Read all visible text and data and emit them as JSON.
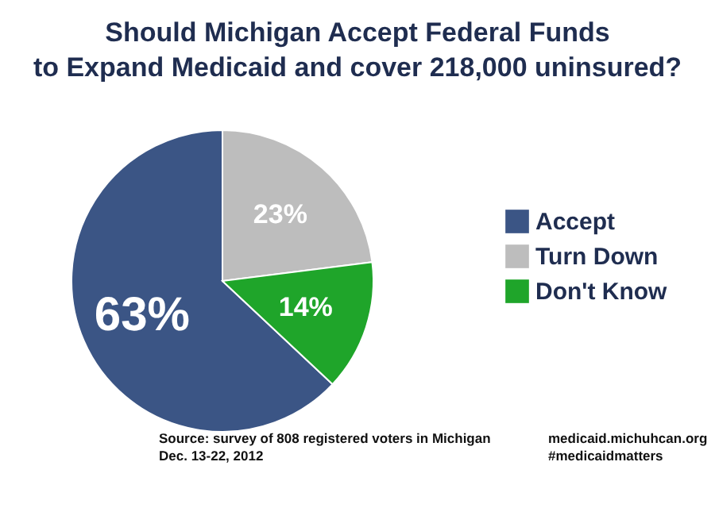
{
  "chart_data": {
    "type": "pie",
    "title": "Should Michigan Accept Federal Funds\nto Expand Medicaid and cover 218,000 uninsured?",
    "categories": [
      "Accept",
      "Turn Down",
      "Don't Know"
    ],
    "values": [
      63,
      23,
      14
    ],
    "colors": [
      "#3b5585",
      "#bdbdbd",
      "#1fa52a"
    ],
    "value_labels": [
      "63%",
      "23%",
      "14%"
    ],
    "legend": "right",
    "annotations": [
      "Source: survey of 808 registered voters in Michigan\nDec. 13-22, 2012",
      "medicaid.michuhcan.org\n#medicaidmatters"
    ]
  }
}
